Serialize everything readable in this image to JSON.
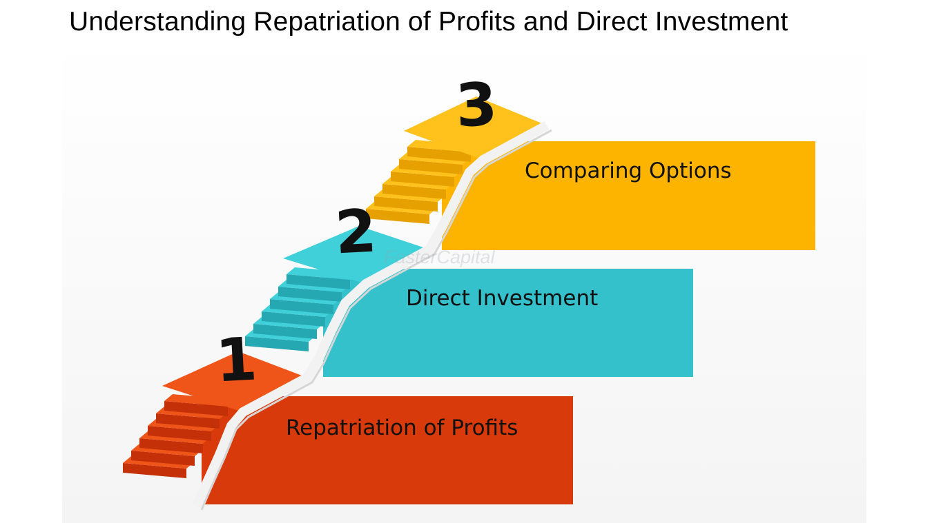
{
  "title": "Understanding Repatriation of Profits and Direct Investment",
  "steps": [
    {
      "number": "1",
      "label": "Repatriation of Profits",
      "color": "#d83a0c",
      "tread": "#ef5418",
      "riser": "#c43008"
    },
    {
      "number": "2",
      "label": "Direct Investment",
      "color": "#35c1cb",
      "tread": "#3fd0da",
      "riser": "#26a8b2"
    },
    {
      "number": "3",
      "label": "Comparing Options",
      "color": "#fcb400",
      "tread": "#ffc21c",
      "riser": "#e6a000"
    }
  ],
  "watermark": "FasterCapital"
}
